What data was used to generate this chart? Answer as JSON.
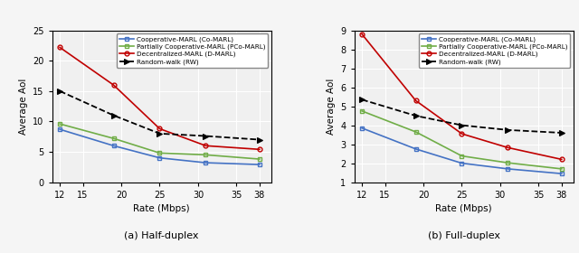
{
  "x": [
    12,
    19,
    25,
    31,
    38
  ],
  "half_duplex": {
    "co_marl": [
      8.7,
      6.0,
      4.0,
      3.2,
      2.9
    ],
    "pco_marl": [
      9.6,
      7.2,
      4.8,
      4.5,
      3.8
    ],
    "d_marl": [
      22.2,
      16.0,
      8.8,
      6.0,
      5.4
    ],
    "rw": [
      15.0,
      11.0,
      8.0,
      7.6,
      7.0
    ]
  },
  "full_duplex": {
    "co_marl": [
      3.85,
      2.75,
      2.0,
      1.7,
      1.45
    ],
    "pco_marl": [
      4.75,
      3.65,
      2.38,
      2.02,
      1.7
    ],
    "d_marl": [
      8.8,
      5.3,
      3.55,
      2.82,
      2.2
    ],
    "rw": [
      5.35,
      4.5,
      4.0,
      3.75,
      3.6
    ]
  },
  "ylim_half": [
    0,
    25
  ],
  "ylim_full": [
    1,
    9
  ],
  "yticks_half": [
    0,
    5,
    10,
    15,
    20,
    25
  ],
  "yticks_full": [
    1,
    2,
    3,
    4,
    5,
    6,
    7,
    8,
    9
  ],
  "xlabel": "Rate (Mbps)",
  "ylabel": "Average AoI",
  "title_a": "(a) Half-duplex",
  "title_b": "(b) Full-duplex",
  "legend_labels": [
    "Cooperative-MARL (Co-MARL)",
    "Partially Cooperative-MARL (PCo-MARL)",
    "Decentralized-MARL (D-MARL)",
    "Random-walk (RW)"
  ],
  "colors": {
    "co_marl": "#4472C4",
    "pco_marl": "#70AD47",
    "d_marl": "#C00000",
    "rw": "#000000"
  },
  "xticks": [
    12,
    15,
    20,
    25,
    30,
    35,
    38
  ],
  "xlim": [
    11,
    39.5
  ]
}
